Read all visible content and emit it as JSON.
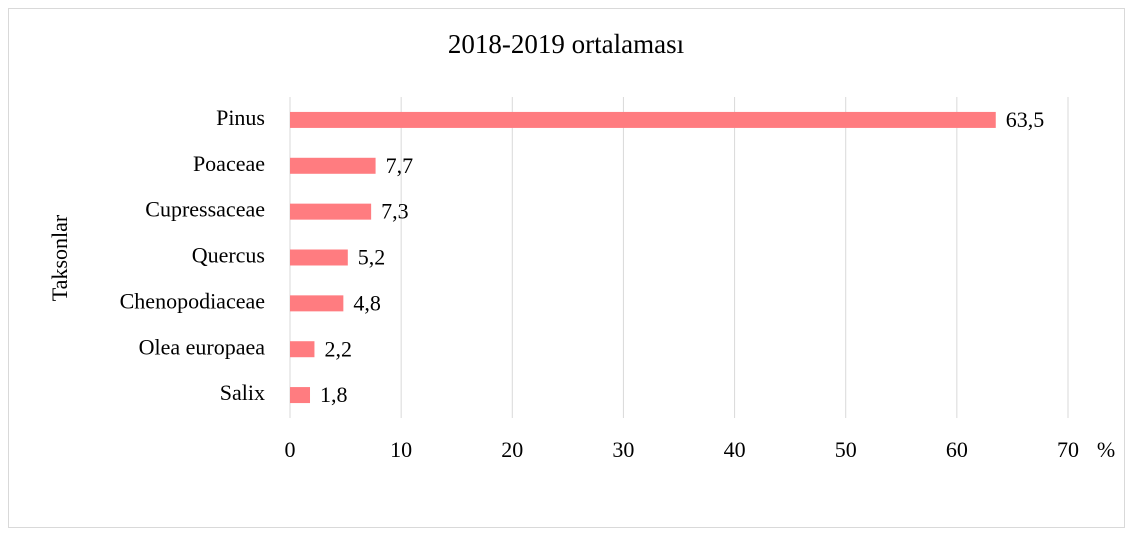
{
  "chart_data": {
    "type": "bar",
    "orientation": "horizontal",
    "title": "2018-2019 ortalaması",
    "categories": [
      "Pinus",
      "Poaceae",
      "Cupressaceae",
      "Quercus",
      "Chenopodiaceae",
      "Olea europaea",
      "Salix"
    ],
    "values": [
      63.5,
      7.7,
      7.3,
      5.2,
      4.8,
      2.2,
      1.8
    ],
    "value_labels": [
      "63,5",
      "7,7",
      "7,3",
      "5,2",
      "4,8",
      "2,2",
      "1,8"
    ],
    "color": "#ff7c80",
    "xlim": [
      0,
      70
    ],
    "xticks": [
      0,
      10,
      20,
      30,
      40,
      50,
      60,
      70
    ],
    "x_label": "%",
    "y_label": "Taksonlar",
    "grid": true
  }
}
